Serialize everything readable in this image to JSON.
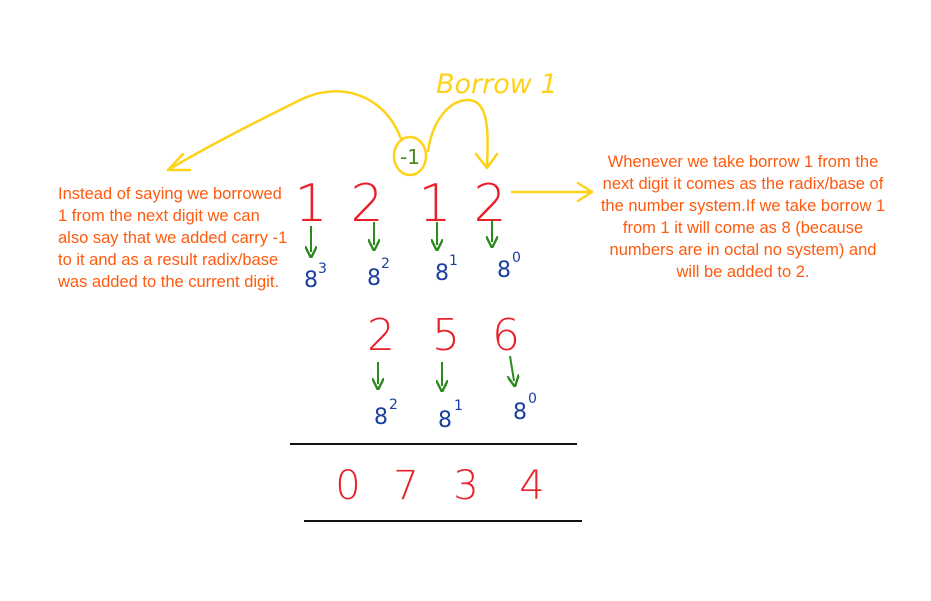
{
  "annotations": {
    "borrow_label": "Borrow 1",
    "carry_label": "-1",
    "left_note": "Instead of saying we borrowed 1 from the next digit we can also say that we added carry -1 to it and as a result radix/base was added to the current digit.",
    "right_note": "Whenever we take borrow 1 from the next digit it comes as the radix/base of the number system.If we take borrow 1 from 1 it will come as 8 (because numbers are in octal no system) and will be added to 2."
  },
  "minuend": {
    "digits": [
      "1",
      "2",
      "1",
      "2"
    ],
    "weights": [
      {
        "base": "8",
        "exp": "3"
      },
      {
        "base": "8",
        "exp": "2"
      },
      {
        "base": "8",
        "exp": "1"
      },
      {
        "base": "8",
        "exp": "0"
      }
    ]
  },
  "subtrahend": {
    "digits": [
      "2",
      "5",
      "6"
    ],
    "weights": [
      {
        "base": "8",
        "exp": "2"
      },
      {
        "base": "8",
        "exp": "1"
      },
      {
        "base": "8",
        "exp": "0"
      }
    ]
  },
  "result": {
    "digits": [
      "0",
      "7",
      "3",
      "4"
    ]
  },
  "colors": {
    "digit": "#e8202a",
    "weight": "#1a3fa0",
    "arrow": "#2a8a1e",
    "annotation": "#ffd21a",
    "note_text": "#ff5a0e",
    "rule": "#111111"
  }
}
